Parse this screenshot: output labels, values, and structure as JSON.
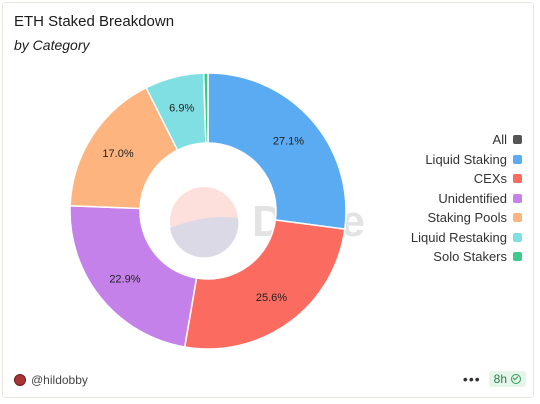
{
  "chart_data": {
    "type": "pie",
    "title": "ETH Staked Breakdown",
    "subtitle": "by Category",
    "legend_position": "right",
    "legend_all_label": "All",
    "legend_all_color": "#555555",
    "slices": [
      {
        "label": "Liquid Staking",
        "value": 27.1,
        "display": "27.1%",
        "color": "#5aabf2"
      },
      {
        "label": "CEXs",
        "value": 25.6,
        "display": "25.6%",
        "color": "#fb6b5f"
      },
      {
        "label": "Unidentified",
        "value": 22.9,
        "display": "22.9%",
        "color": "#c581ea"
      },
      {
        "label": "Staking Pools",
        "value": 17.0,
        "display": "17.0%",
        "color": "#fdb47f"
      },
      {
        "label": "Liquid Restaking",
        "value": 6.9,
        "display": "6.9%",
        "color": "#7fdfe2"
      },
      {
        "label": "Solo Stakers",
        "value": 0.5,
        "display": "",
        "color": "#3cc989"
      }
    ]
  },
  "watermark": "Dune",
  "footer": {
    "author": "@hildobby",
    "refresh": "8h",
    "menu": "•••"
  }
}
